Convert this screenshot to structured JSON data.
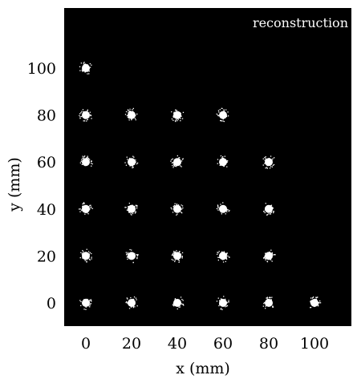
{
  "chart_data": {
    "type": "scatter",
    "title": "reconstruction",
    "xlabel": "x (mm)",
    "ylabel": "y (mm)",
    "xlim": [
      -10,
      112
    ],
    "ylim": [
      -10,
      120
    ],
    "xticks": [
      0,
      20,
      40,
      60,
      80,
      100
    ],
    "yticks": [
      0,
      20,
      40,
      60,
      80,
      100
    ],
    "xtick_labels": [
      "0",
      "20",
      "40",
      "60",
      "80",
      "100"
    ],
    "ytick_labels": [
      "0",
      "20",
      "40",
      "60",
      "80",
      "100"
    ],
    "grid": false,
    "background_color": "#000000",
    "point_color": "#ffffff",
    "points": [
      {
        "x": 0,
        "y": 100
      },
      {
        "x": 0,
        "y": 80
      },
      {
        "x": 20,
        "y": 80
      },
      {
        "x": 40,
        "y": 80
      },
      {
        "x": 60,
        "y": 80
      },
      {
        "x": 0,
        "y": 60
      },
      {
        "x": 20,
        "y": 60
      },
      {
        "x": 40,
        "y": 60
      },
      {
        "x": 60,
        "y": 60
      },
      {
        "x": 80,
        "y": 60
      },
      {
        "x": 0,
        "y": 40
      },
      {
        "x": 20,
        "y": 40
      },
      {
        "x": 40,
        "y": 40
      },
      {
        "x": 60,
        "y": 40
      },
      {
        "x": 80,
        "y": 40
      },
      {
        "x": 0,
        "y": 20
      },
      {
        "x": 20,
        "y": 20
      },
      {
        "x": 40,
        "y": 20
      },
      {
        "x": 60,
        "y": 20
      },
      {
        "x": 80,
        "y": 20
      },
      {
        "x": 0,
        "y": 0
      },
      {
        "x": 20,
        "y": 0
      },
      {
        "x": 40,
        "y": 0
      },
      {
        "x": 60,
        "y": 0
      },
      {
        "x": 80,
        "y": 0
      },
      {
        "x": 100,
        "y": 0
      }
    ]
  }
}
